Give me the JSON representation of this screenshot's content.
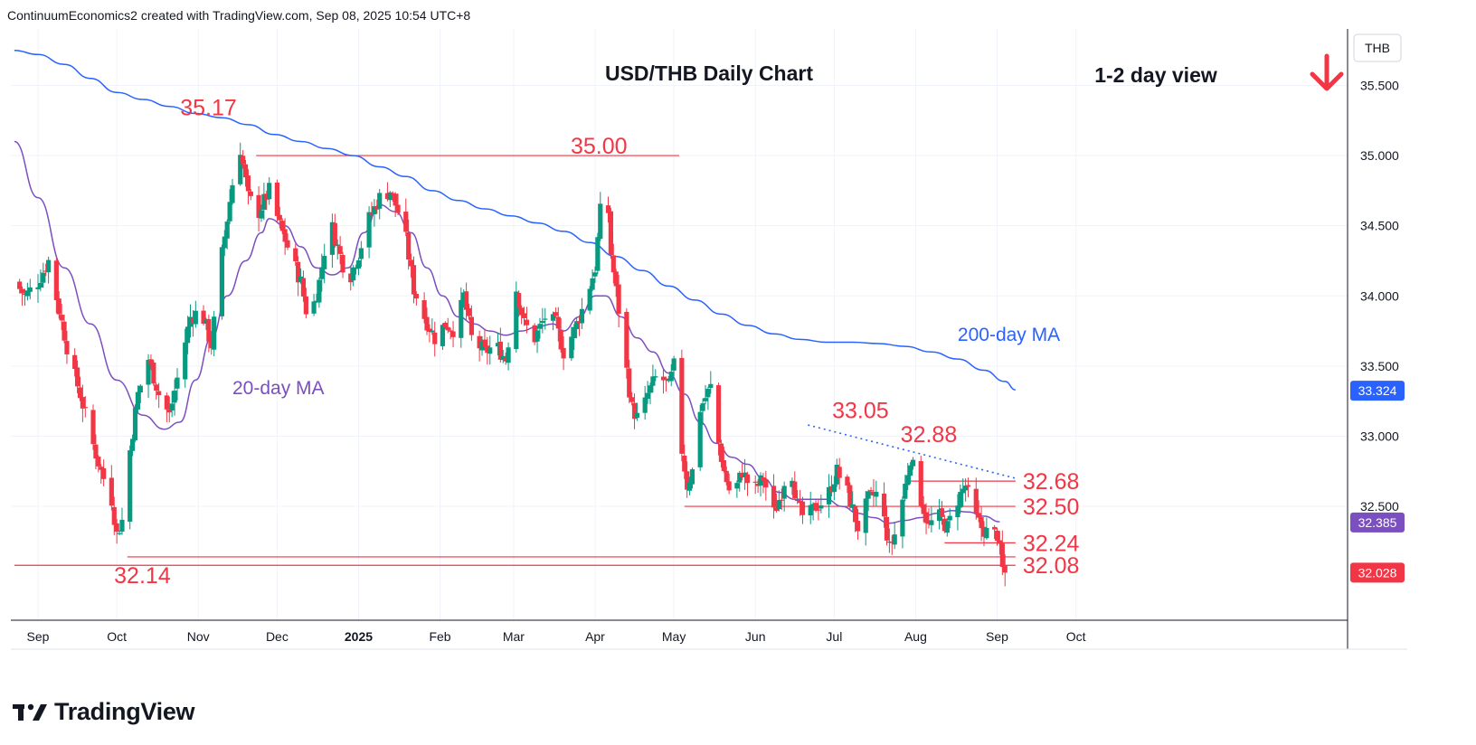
{
  "header": {
    "attribution": "ContinuumEconomics2 created with TradingView.com, Sep 08, 2025 10:54 UTC+8"
  },
  "footer": {
    "brand": "TradingView"
  },
  "colors": {
    "up": "#089981",
    "down": "#f23645",
    "ma20": "#7b4fc0",
    "ma200": "#2962ff",
    "level": "#f23645",
    "trend": "#2962ff",
    "label": "#f23645"
  },
  "chart_data": {
    "type": "candlestick",
    "title": "USD/THB Daily Chart",
    "subtitle": "1-2 day view",
    "direction_icon": "arrow-down-icon",
    "symbol_unit": "THB",
    "ylim": [
      31.75,
      35.9
    ],
    "yticks": [
      "35.500",
      "35.000",
      "34.500",
      "34.000",
      "33.500",
      "33.000",
      "32.500"
    ],
    "xticks": [
      {
        "label": "Sep",
        "day": 0
      },
      {
        "label": "Oct",
        "day": 30
      },
      {
        "label": "Nov",
        "day": 61
      },
      {
        "label": "Dec",
        "day": 91
      },
      {
        "label": "2025",
        "day": 122
      },
      {
        "label": "Feb",
        "day": 153
      },
      {
        "label": "Mar",
        "day": 181
      },
      {
        "label": "Apr",
        "day": 212
      },
      {
        "label": "May",
        "day": 242
      },
      {
        "label": "Jun",
        "day": 273
      },
      {
        "label": "Jul",
        "day": 303
      },
      {
        "label": "Aug",
        "day": 334
      },
      {
        "label": "Sep",
        "day": 365
      },
      {
        "label": "Oct",
        "day": 395
      }
    ],
    "price_badges": [
      {
        "label": "33.324",
        "value": 33.324,
        "color": "#2962ff"
      },
      {
        "label": "32.385",
        "value": 32.385,
        "color": "#7b4fc0"
      },
      {
        "label": "32.028",
        "value": 32.028,
        "color": "#f23645"
      }
    ],
    "annotations": [
      {
        "text": "35.17",
        "day": 69,
        "value": 35.17
      },
      {
        "text": "35.00",
        "day": 201,
        "value": 35.0
      },
      {
        "text": "33.05",
        "day": 313,
        "value": 33.05
      },
      {
        "text": "32.88",
        "day": 339,
        "value": 32.88
      },
      {
        "text": "32.68",
        "day": 372,
        "value": 32.68
      },
      {
        "text": "32.50",
        "day": 372,
        "value": 32.5
      },
      {
        "text": "32.24",
        "day": 372,
        "value": 32.24
      },
      {
        "text": "32.08",
        "day": 372,
        "value": 32.08
      },
      {
        "text": "32.14",
        "day": 30,
        "value": 32.14
      },
      {
        "text": "20-day MA",
        "day": 74,
        "value": 33.3
      },
      {
        "text": "200-day MA",
        "day": 350,
        "value": 33.68
      }
    ],
    "levels": [
      {
        "value": 35.0,
        "from": 83,
        "to": 244
      },
      {
        "value": 32.5,
        "from": 246,
        "to": 372
      },
      {
        "value": 32.68,
        "from": 332,
        "to": 372
      },
      {
        "value": 32.24,
        "from": 345,
        "to": 372
      },
      {
        "value": 32.14,
        "from": 34,
        "to": 372
      },
      {
        "value": 32.08,
        "from": -9,
        "to": 372
      }
    ],
    "trendline": [
      {
        "day": 293,
        "value": 33.08
      },
      {
        "day": 372,
        "value": 32.7
      }
    ],
    "series": [
      {
        "name": "20-day MA",
        "points": [
          [
            -9,
            35.1
          ],
          [
            0,
            34.7
          ],
          [
            10,
            34.2
          ],
          [
            20,
            33.8
          ],
          [
            30,
            33.4
          ],
          [
            40,
            33.15
          ],
          [
            48,
            33.05
          ],
          [
            54,
            33.1
          ],
          [
            60,
            33.4
          ],
          [
            66,
            33.7
          ],
          [
            72,
            34.0
          ],
          [
            79,
            34.25
          ],
          [
            85,
            34.45
          ],
          [
            88,
            34.55
          ],
          [
            94,
            34.5
          ],
          [
            100,
            34.35
          ],
          [
            106,
            34.2
          ],
          [
            112,
            34.15
          ],
          [
            118,
            34.2
          ],
          [
            124,
            34.45
          ],
          [
            130,
            34.65
          ],
          [
            136,
            34.6
          ],
          [
            142,
            34.45
          ],
          [
            148,
            34.2
          ],
          [
            154,
            34.0
          ],
          [
            160,
            33.85
          ],
          [
            166,
            33.8
          ],
          [
            172,
            33.75
          ],
          [
            178,
            33.72
          ],
          [
            184,
            33.75
          ],
          [
            190,
            33.78
          ],
          [
            196,
            33.8
          ],
          [
            200,
            33.75
          ],
          [
            206,
            33.85
          ],
          [
            212,
            34.0
          ],
          [
            216,
            34.0
          ],
          [
            222,
            33.85
          ],
          [
            228,
            33.7
          ],
          [
            234,
            33.6
          ],
          [
            240,
            33.45
          ],
          [
            246,
            33.3
          ],
          [
            252,
            33.1
          ],
          [
            258,
            32.95
          ],
          [
            264,
            32.85
          ],
          [
            270,
            32.8
          ],
          [
            276,
            32.7
          ],
          [
            282,
            32.6
          ],
          [
            288,
            32.55
          ],
          [
            294,
            32.55
          ],
          [
            300,
            32.55
          ],
          [
            306,
            32.5
          ],
          [
            312,
            32.45
          ],
          [
            318,
            32.42
          ],
          [
            324,
            32.38
          ],
          [
            330,
            32.4
          ],
          [
            336,
            32.42
          ],
          [
            342,
            32.45
          ],
          [
            348,
            32.47
          ],
          [
            354,
            32.46
          ],
          [
            360,
            32.43
          ],
          [
            366,
            32.39
          ]
        ]
      },
      {
        "name": "200-day MA",
        "points": [
          [
            -9,
            35.75
          ],
          [
            0,
            35.72
          ],
          [
            10,
            35.65
          ],
          [
            20,
            35.55
          ],
          [
            30,
            35.45
          ],
          [
            40,
            35.4
          ],
          [
            50,
            35.35
          ],
          [
            60,
            35.3
          ],
          [
            70,
            35.27
          ],
          [
            80,
            35.22
          ],
          [
            90,
            35.15
          ],
          [
            100,
            35.1
          ],
          [
            110,
            35.05
          ],
          [
            120,
            35.0
          ],
          [
            130,
            34.92
          ],
          [
            140,
            34.85
          ],
          [
            150,
            34.75
          ],
          [
            160,
            34.68
          ],
          [
            170,
            34.62
          ],
          [
            180,
            34.57
          ],
          [
            190,
            34.52
          ],
          [
            200,
            34.46
          ],
          [
            210,
            34.38
          ],
          [
            220,
            34.28
          ],
          [
            230,
            34.18
          ],
          [
            240,
            34.07
          ],
          [
            250,
            33.97
          ],
          [
            260,
            33.87
          ],
          [
            270,
            33.79
          ],
          [
            280,
            33.73
          ],
          [
            290,
            33.69
          ],
          [
            300,
            33.67
          ],
          [
            310,
            33.67
          ],
          [
            320,
            33.66
          ],
          [
            330,
            33.64
          ],
          [
            340,
            33.6
          ],
          [
            350,
            33.55
          ],
          [
            360,
            33.47
          ],
          [
            368,
            33.39
          ],
          [
            372,
            33.33
          ]
        ]
      }
    ],
    "anchors": [
      [
        -9,
        34.1
      ],
      [
        -5,
        34.0
      ],
      [
        0,
        34.1
      ],
      [
        4,
        34.25
      ],
      [
        8,
        33.9
      ],
      [
        12,
        33.55
      ],
      [
        16,
        33.3
      ],
      [
        20,
        33.0
      ],
      [
        24,
        32.75
      ],
      [
        28,
        32.55
      ],
      [
        30,
        32.3
      ],
      [
        32,
        32.4
      ],
      [
        35,
        32.9
      ],
      [
        38,
        33.3
      ],
      [
        42,
        33.55
      ],
      [
        46,
        33.3
      ],
      [
        50,
        33.15
      ],
      [
        54,
        33.5
      ],
      [
        58,
        33.85
      ],
      [
        62,
        33.9
      ],
      [
        66,
        33.65
      ],
      [
        70,
        34.3
      ],
      [
        74,
        34.8
      ],
      [
        77,
        35.05
      ],
      [
        80,
        34.7
      ],
      [
        84,
        34.6
      ],
      [
        88,
        34.75
      ],
      [
        92,
        34.5
      ],
      [
        96,
        34.3
      ],
      [
        100,
        34.1
      ],
      [
        103,
        33.8
      ],
      [
        107,
        34.1
      ],
      [
        111,
        34.55
      ],
      [
        114,
        34.35
      ],
      [
        118,
        34.1
      ],
      [
        122,
        34.3
      ],
      [
        126,
        34.55
      ],
      [
        130,
        34.7
      ],
      [
        134,
        34.75
      ],
      [
        138,
        34.55
      ],
      [
        140,
        34.4
      ],
      [
        143,
        34.05
      ],
      [
        147,
        33.85
      ],
      [
        151,
        33.7
      ],
      [
        155,
        33.8
      ],
      [
        159,
        33.75
      ],
      [
        162,
        34.0
      ],
      [
        165,
        33.7
      ],
      [
        170,
        33.6
      ],
      [
        174,
        33.65
      ],
      [
        178,
        33.55
      ],
      [
        182,
        34.05
      ],
      [
        185,
        33.8
      ],
      [
        189,
        33.7
      ],
      [
        193,
        33.85
      ],
      [
        197,
        33.8
      ],
      [
        200,
        33.6
      ],
      [
        204,
        33.75
      ],
      [
        208,
        33.95
      ],
      [
        212,
        34.2
      ],
      [
        214,
        34.6
      ],
      [
        216,
        34.9
      ],
      [
        218,
        34.3
      ],
      [
        221,
        33.9
      ],
      [
        223,
        33.6
      ],
      [
        226,
        33.2
      ],
      [
        229,
        33.1
      ],
      [
        232,
        33.3
      ],
      [
        236,
        33.45
      ],
      [
        240,
        33.35
      ],
      [
        242,
        33.5
      ],
      [
        245,
        32.9
      ],
      [
        247,
        32.65
      ],
      [
        250,
        32.8
      ],
      [
        252,
        33.2
      ],
      [
        256,
        33.35
      ],
      [
        258,
        33.05
      ],
      [
        261,
        32.75
      ],
      [
        264,
        32.55
      ],
      [
        268,
        32.75
      ],
      [
        272,
        32.6
      ],
      [
        276,
        32.7
      ],
      [
        280,
        32.45
      ],
      [
        283,
        32.6
      ],
      [
        286,
        32.85
      ],
      [
        289,
        32.5
      ],
      [
        292,
        32.4
      ],
      [
        296,
        32.5
      ],
      [
        300,
        32.55
      ],
      [
        304,
        32.75
      ],
      [
        308,
        32.6
      ],
      [
        312,
        32.35
      ],
      [
        316,
        32.55
      ],
      [
        320,
        32.6
      ],
      [
        324,
        32.2
      ],
      [
        326,
        32.3
      ],
      [
        329,
        32.55
      ],
      [
        332,
        32.85
      ],
      [
        336,
        32.55
      ],
      [
        339,
        32.35
      ],
      [
        342,
        32.45
      ],
      [
        346,
        32.35
      ],
      [
        350,
        32.55
      ],
      [
        353,
        32.65
      ],
      [
        356,
        32.45
      ],
      [
        359,
        32.35
      ],
      [
        362,
        32.3
      ],
      [
        365,
        32.3
      ],
      [
        367,
        32.05
      ],
      [
        368,
        32.03
      ]
    ],
    "candle_range_days": [
      -9,
      368
    ]
  }
}
